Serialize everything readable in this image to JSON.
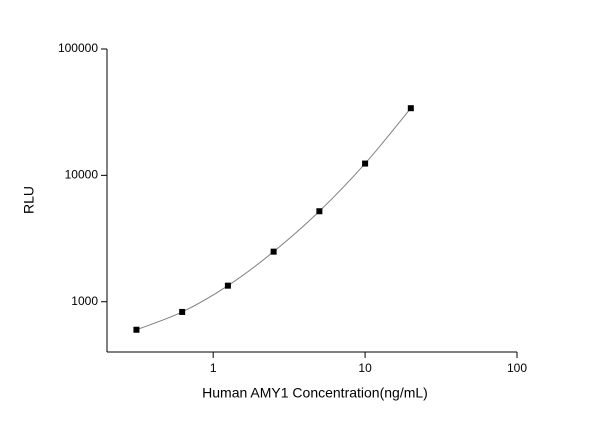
{
  "chart_data": {
    "type": "scatter",
    "x_label": "Human AMY1 Concentration(ng/mL)",
    "y_label": "RLU",
    "x": [
      0.3125,
      0.625,
      1.25,
      2.5,
      5,
      10,
      20
    ],
    "series": [
      {
        "color": "#000000",
        "curve_color": "#808080",
        "values": [
          600,
          830,
          1340,
          2490,
          5200,
          12400,
          34000
        ]
      }
    ],
    "xlim": [
      0.2,
      100
    ],
    "ylim": [
      400,
      100000
    ],
    "xticks": [
      1,
      10,
      100
    ],
    "yticks": [
      1000,
      10000,
      100000
    ],
    "xlog": true,
    "ylog": true,
    "fit_curve": true
  }
}
